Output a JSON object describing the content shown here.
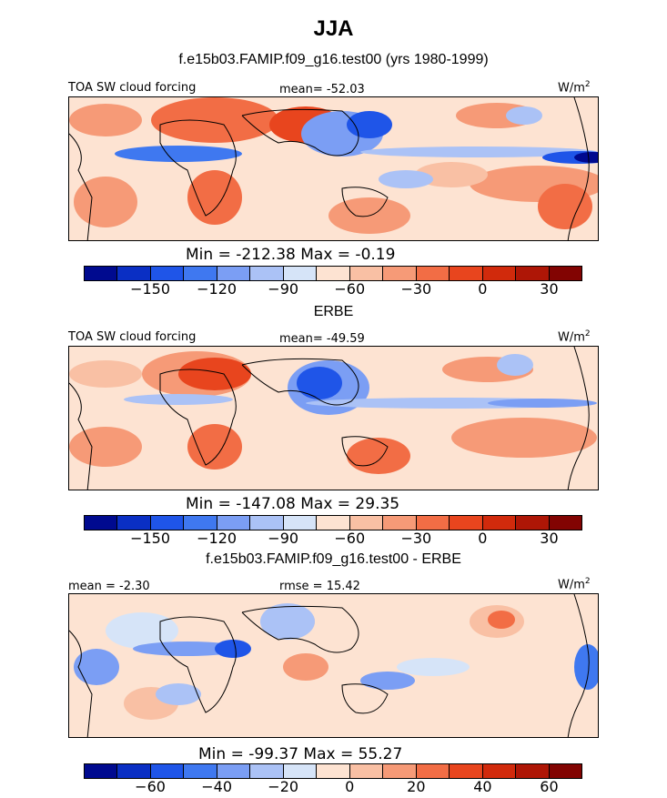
{
  "title": "JJA",
  "panels": [
    {
      "heading": "f.e15b03.FAMIP.f09_g16.test00 (yrs 1980-1999)",
      "left_label": "TOA SW cloud forcing",
      "center_label": "mean= -52.03",
      "units": "W/m",
      "units_sup": "2",
      "minmax": "Min = -212.38 Max = -0.19",
      "ticks": [
        "-150",
        "-120",
        "-90",
        "-60",
        "-30",
        "0",
        "30"
      ]
    },
    {
      "heading": "ERBE",
      "left_label": "TOA SW cloud forcing",
      "center_label": "mean= -49.59",
      "units": "W/m",
      "units_sup": "2",
      "minmax": "Min = -147.08 Max = 29.35",
      "ticks": [
        "-150",
        "-120",
        "-90",
        "-60",
        "-30",
        "0",
        "30"
      ]
    },
    {
      "heading": "f.e15b03.FAMIP.f09_g16.test00 - ERBE",
      "left_label": "mean = -2.30",
      "center_label": "rmse = 15.42",
      "units": "W/m",
      "units_sup": "2",
      "minmax": "Min = -99.37 Max = 55.27",
      "ticks": [
        "-60",
        "-40",
        "-20",
        "0",
        "20",
        "40",
        "60"
      ]
    }
  ],
  "colorbar_colors": [
    "#000a8f",
    "#0a2fc4",
    "#1f55e8",
    "#3f78f0",
    "#7b9ef4",
    "#abc2f6",
    "#d6e4f8",
    "#fde3d2",
    "#f9c0a4",
    "#f69a77",
    "#f26d45",
    "#e8451e",
    "#d12a0c",
    "#ae1606",
    "#820402"
  ]
}
